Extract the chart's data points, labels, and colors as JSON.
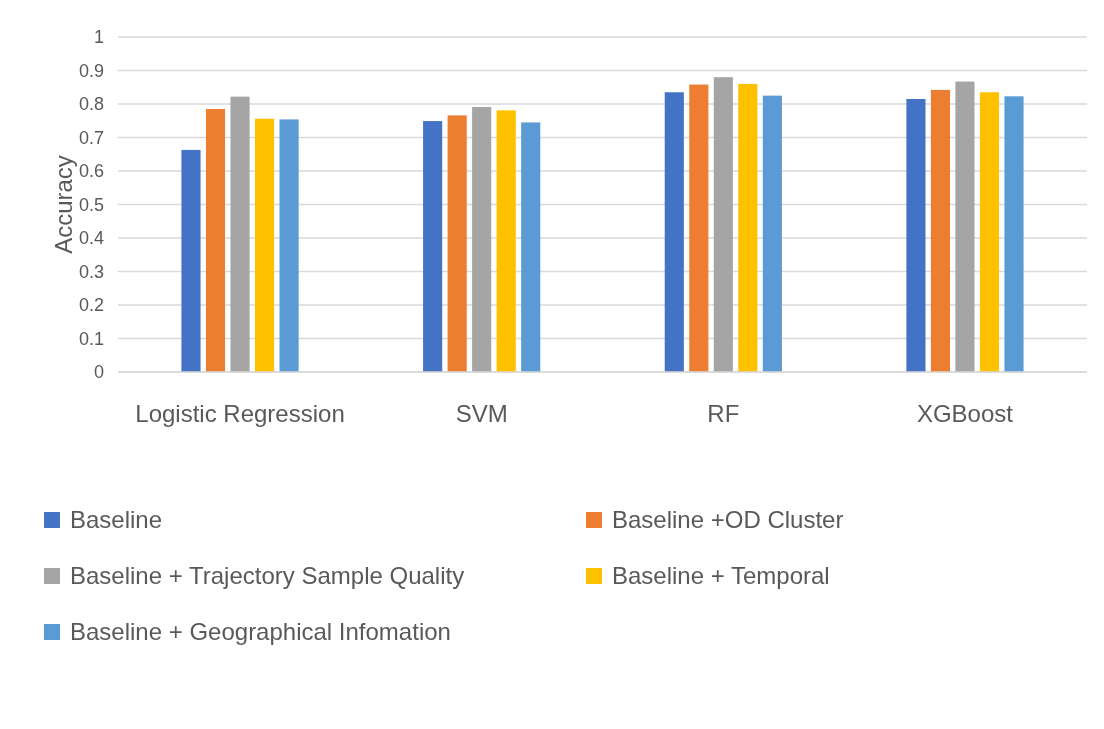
{
  "chart_data": {
    "type": "bar",
    "ylabel": "Accuracy",
    "categories": [
      "Logistic Regression",
      "SVM",
      "RF",
      "XGBoost"
    ],
    "series": [
      {
        "name": "Baseline",
        "color": "#4472c4",
        "values": [
          0.663,
          0.749,
          0.835,
          0.815
        ]
      },
      {
        "name": "Baseline +OD Cluster",
        "color": "#ed7d31",
        "values": [
          0.785,
          0.766,
          0.858,
          0.842
        ]
      },
      {
        "name": "Baseline + Trajectory Sample Quality",
        "color": "#a5a5a5",
        "values": [
          0.822,
          0.791,
          0.88,
          0.867
        ]
      },
      {
        "name": "Baseline + Temporal",
        "color": "#ffc000",
        "values": [
          0.756,
          0.781,
          0.86,
          0.835
        ]
      },
      {
        "name": "Baseline + Geographical Infomation",
        "color": "#5b9bd5",
        "values": [
          0.754,
          0.745,
          0.825,
          0.823
        ]
      }
    ],
    "ylim": [
      0,
      1
    ],
    "yticks": [
      0,
      0.1,
      0.2,
      0.3,
      0.4,
      0.5,
      0.6,
      0.7,
      0.8,
      0.9,
      1
    ],
    "grid": "y",
    "legend": "bottom"
  }
}
